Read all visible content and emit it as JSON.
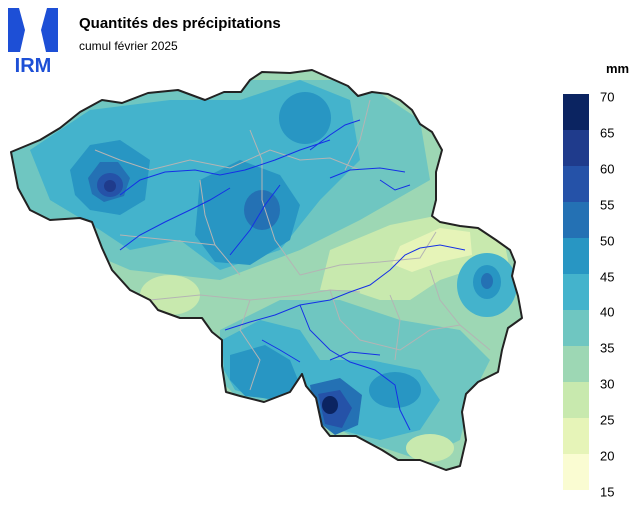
{
  "logo": {
    "text": "IRM",
    "color": "#1d4fd6"
  },
  "title": "Quantités des précipitations",
  "subtitle": "cumul février 2025",
  "legend": {
    "unit": "mm",
    "ticks": [
      "70",
      "65",
      "60",
      "55",
      "50",
      "45",
      "40",
      "35",
      "30",
      "25",
      "20",
      "15"
    ],
    "classes": [
      {
        "from": 65,
        "to": 70,
        "color": "#0b2461"
      },
      {
        "from": 60,
        "to": 65,
        "color": "#1f3b8c"
      },
      {
        "from": 55,
        "to": 60,
        "color": "#2552a8"
      },
      {
        "from": 50,
        "to": 55,
        "color": "#2471b4"
      },
      {
        "from": 45,
        "to": 50,
        "color": "#2896c3"
      },
      {
        "from": 40,
        "to": 45,
        "color": "#44b3cc"
      },
      {
        "from": 35,
        "to": 40,
        "color": "#6fc6c1"
      },
      {
        "from": 30,
        "to": 35,
        "color": "#9dd7b4"
      },
      {
        "from": 25,
        "to": 30,
        "color": "#c8e9ae"
      },
      {
        "from": 20,
        "to": 25,
        "color": "#e6f4b8"
      },
      {
        "from": 15,
        "to": 20,
        "color": "#fafcd2"
      }
    ]
  },
  "map": {
    "country_border_color": "#222222",
    "province_border_color": "#b4b4b4",
    "river_color": "#1530e6"
  }
}
